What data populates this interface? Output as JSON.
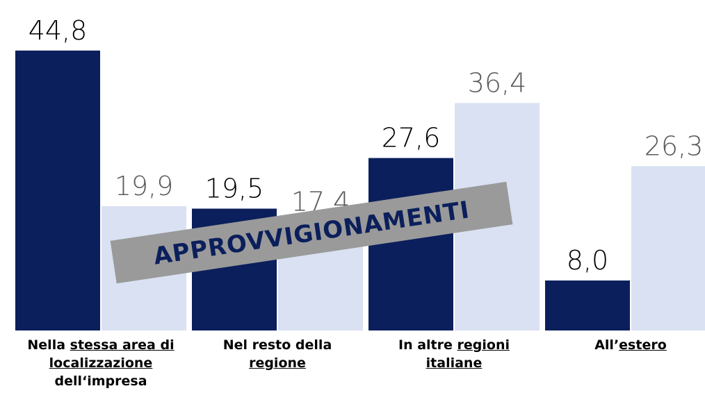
{
  "chart_data": {
    "type": "bar",
    "categories": [
      [
        {
          "text": "Nella ",
          "underline": false
        },
        {
          "text": "stessa area di localizzazione",
          "underline": true
        },
        {
          "text": " dell‘impresa",
          "underline": false
        }
      ],
      [
        {
          "text": "Nel resto della ",
          "underline": false
        },
        {
          "text": "regione",
          "underline": true
        }
      ],
      [
        {
          "text": "In altre ",
          "underline": false
        },
        {
          "text": "regioni italiane",
          "underline": true
        }
      ],
      [
        {
          "text": "All’",
          "underline": false
        },
        {
          "text": "estero",
          "underline": true
        }
      ]
    ],
    "series": [
      {
        "color": "#0b1f5c",
        "label_color": "#000000",
        "values": [
          44.8,
          19.5,
          27.6,
          8.0
        ],
        "value_labels": [
          "44,8",
          "19,5",
          "27,6",
          "8,0"
        ]
      },
      {
        "color": "#d9e1f2",
        "label_color": "#595959",
        "values": [
          19.9,
          17.4,
          36.4,
          26.3
        ],
        "value_labels": [
          "19,9",
          "17,4",
          "36,4",
          "26,3"
        ]
      }
    ],
    "ylim": [
      0,
      50
    ],
    "annotation": "APPROVVIGIONAMENTI"
  }
}
